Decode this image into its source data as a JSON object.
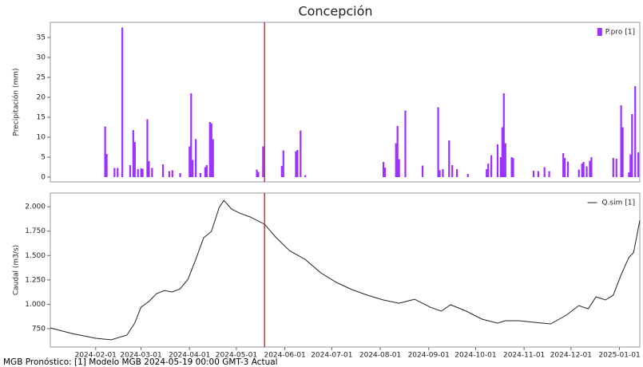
{
  "title": "Concepción",
  "footer": "MGB Pronóstico: [1] Modelo MGB 2024-05-19 00:00 GMT-3 Actual",
  "chart_data": [
    {
      "type": "bar",
      "ylabel": "Precipitación (mm)",
      "vline": "2024-05-19",
      "vline_color": "#cc0000",
      "legend": "upper right",
      "xlim": [
        "2024-01-03",
        "2025-01-14"
      ],
      "ylim": [
        -1.2,
        38.8
      ],
      "yticks": [
        0,
        5,
        10,
        15,
        20,
        25,
        30,
        35
      ],
      "x": [
        "2024-02-07",
        "2024-02-08",
        "2024-02-13",
        "2024-02-15",
        "2024-02-18",
        "2024-02-23",
        "2024-02-25",
        "2024-02-26",
        "2024-02-28",
        "2024-03-01",
        "2024-03-02",
        "2024-03-05",
        "2024-03-06",
        "2024-03-08",
        "2024-03-15",
        "2024-03-19",
        "2024-03-21",
        "2024-03-26",
        "2024-04-01",
        "2024-04-02",
        "2024-04-03",
        "2024-04-05",
        "2024-04-08",
        "2024-04-11",
        "2024-04-12",
        "2024-04-14",
        "2024-04-15",
        "2024-04-16",
        "2024-05-14",
        "2024-05-15",
        "2024-05-18",
        "2024-05-30",
        "2024-05-31",
        "2024-06-08",
        "2024-06-09",
        "2024-06-11",
        "2024-06-14",
        "2024-08-03",
        "2024-08-04",
        "2024-08-11",
        "2024-08-12",
        "2024-08-13",
        "2024-08-17",
        "2024-08-28",
        "2024-09-07",
        "2024-09-08",
        "2024-09-10",
        "2024-09-14",
        "2024-09-16",
        "2024-09-19",
        "2024-09-26",
        "2024-10-08",
        "2024-10-09",
        "2024-10-11",
        "2024-10-15",
        "2024-10-17",
        "2024-10-18",
        "2024-10-19",
        "2024-10-20",
        "2024-10-24",
        "2024-10-25",
        "2024-11-07",
        "2024-11-10",
        "2024-11-14",
        "2024-11-17",
        "2024-11-26",
        "2024-11-27",
        "2024-11-29",
        "2024-12-06",
        "2024-12-08",
        "2024-12-09",
        "2024-12-11",
        "2024-12-13",
        "2024-12-14",
        "2024-12-28",
        "2024-12-30",
        "2025-01-02",
        "2025-01-03",
        "2025-01-07",
        "2025-01-08",
        "2025-01-09",
        "2025-01-11",
        "2025-01-13"
      ],
      "series": [
        {
          "name": "P.pro [1]",
          "color": "#9b30ff",
          "values": [
            12.7,
            5.8,
            2.3,
            2.3,
            37.5,
            3.0,
            11.8,
            8.8,
            2.0,
            2.2,
            2.1,
            14.5,
            4.0,
            2.3,
            3.2,
            1.5,
            1.7,
            1.0,
            7.7,
            21.0,
            4.3,
            9.5,
            1.0,
            2.5,
            3.0,
            13.8,
            13.5,
            9.5,
            1.9,
            1.3,
            7.7,
            2.8,
            6.7,
            6.5,
            6.8,
            11.7,
            0.5,
            3.8,
            2.4,
            8.5,
            12.8,
            4.5,
            16.7,
            2.9,
            17.5,
            1.7,
            2.0,
            9.2,
            3.0,
            2.0,
            0.8,
            2.0,
            3.4,
            5.5,
            8.2,
            5.0,
            12.5,
            21.0,
            8.5,
            5.0,
            4.8,
            1.6,
            1.5,
            2.5,
            1.5,
            6.0,
            4.8,
            3.9,
            1.9,
            3.4,
            3.8,
            2.7,
            4.1,
            5.0,
            4.8,
            4.6,
            18.0,
            12.5,
            1.2,
            5.7,
            15.8,
            22.8,
            6.2
          ]
        }
      ]
    },
    {
      "type": "line",
      "ylabel": "Caudal (m3/s)",
      "vline": "2024-05-19",
      "vline_color": "#cc0000",
      "legend": "upper right",
      "xlim": [
        "2024-01-03",
        "2025-01-14"
      ],
      "xticks": [
        "2024-02-01",
        "2024-03-01",
        "2024-04-01",
        "2024-05-01",
        "2024-06-01",
        "2024-07-01",
        "2024-08-01",
        "2024-09-01",
        "2024-10-01",
        "2024-11-01",
        "2024-12-01",
        "2025-01-01"
      ],
      "ylim": [
        562,
        2140
      ],
      "yticks": [
        {
          "value": 750,
          "label": "750"
        },
        {
          "value": 1000,
          "label": "1.000"
        },
        {
          "value": 1250,
          "label": "1.250"
        },
        {
          "value": 1500,
          "label": "1.500"
        },
        {
          "value": 1750,
          "label": "1.750"
        },
        {
          "value": 2000,
          "label": "2.000"
        }
      ],
      "x": [
        "2024-01-03",
        "2024-01-17",
        "2024-02-01",
        "2024-02-11",
        "2024-02-21",
        "2024-02-26",
        "2024-03-01",
        "2024-03-06",
        "2024-03-11",
        "2024-03-16",
        "2024-03-21",
        "2024-03-26",
        "2024-03-31",
        "2024-04-05",
        "2024-04-10",
        "2024-04-15",
        "2024-04-20",
        "2024-04-23",
        "2024-04-28",
        "2024-05-03",
        "2024-05-10",
        "2024-05-19",
        "2024-05-26",
        "2024-06-04",
        "2024-06-14",
        "2024-06-24",
        "2024-07-04",
        "2024-07-14",
        "2024-07-24",
        "2024-08-03",
        "2024-08-13",
        "2024-08-23",
        "2024-09-02",
        "2024-09-09",
        "2024-09-15",
        "2024-09-25",
        "2024-10-05",
        "2024-10-15",
        "2024-10-20",
        "2024-10-29",
        "2024-11-08",
        "2024-11-18",
        "2024-11-28",
        "2024-12-06",
        "2024-12-12",
        "2024-12-17",
        "2024-12-23",
        "2024-12-28",
        "2025-01-02",
        "2025-01-07",
        "2025-01-10",
        "2025-01-14"
      ],
      "series": [
        {
          "name": "Q.sim [1]",
          "color": "#222222",
          "values": [
            758,
            700,
            652,
            636,
            685,
            807,
            970,
            1028,
            1110,
            1142,
            1126,
            1158,
            1256,
            1460,
            1680,
            1747,
            1992,
            2065,
            1975,
            1935,
            1894,
            1820,
            1690,
            1550,
            1460,
            1322,
            1224,
            1150,
            1093,
            1044,
            1011,
            1052,
            970,
            930,
            995,
            930,
            848,
            807,
            832,
            832,
            815,
            799,
            889,
            987,
            954,
            1077,
            1044,
            1093,
            1300,
            1480,
            1530,
            1860
          ]
        }
      ]
    }
  ]
}
